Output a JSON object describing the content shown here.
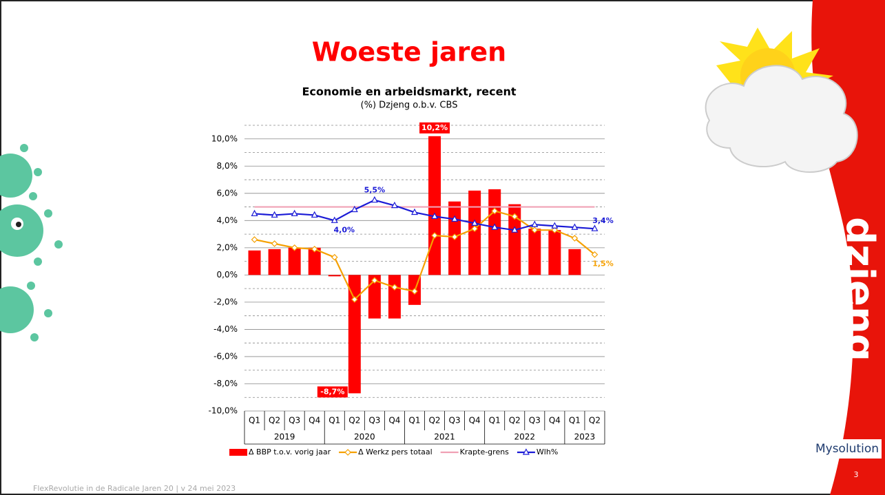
{
  "slide": {
    "title": "Woeste jaren",
    "logo": "dzjeng",
    "brand": "Mysolution",
    "footer": "FlexRevolutie in de Radicale Jaren 20  |  v 24 mei 2023",
    "page_number": "3"
  },
  "chart_data": {
    "type": "combo",
    "title": "Economie en arbeidsmarkt, recent",
    "subtitle": "(%) Dzjeng o.b.v. CBS",
    "categories": [
      "Q1",
      "Q2",
      "Q3",
      "Q4",
      "Q1",
      "Q2",
      "Q3",
      "Q4",
      "Q1",
      "Q2",
      "Q3",
      "Q4",
      "Q1",
      "Q2",
      "Q3",
      "Q4",
      "Q1",
      "Q2"
    ],
    "category_groups": [
      "2019",
      "2019",
      "2019",
      "2019",
      "2020",
      "2020",
      "2020",
      "2020",
      "2021",
      "2021",
      "2021",
      "2021",
      "2022",
      "2022",
      "2022",
      "2022",
      "2023",
      "2023"
    ],
    "ylim": [
      -10,
      11
    ],
    "yticks": [
      {
        "value": -10,
        "label": "-10,0%"
      },
      {
        "value": -8,
        "label": "-8,0%"
      },
      {
        "value": -6,
        "label": "-6,0%"
      },
      {
        "value": -4,
        "label": "-4,0%"
      },
      {
        "value": -2,
        "label": "-2,0%"
      },
      {
        "value": 0,
        "label": "0,0%"
      },
      {
        "value": 2,
        "label": "2,0%"
      },
      {
        "value": 4,
        "label": "4,0%"
      },
      {
        "value": 6,
        "label": "6,0%"
      },
      {
        "value": 8,
        "label": "8,0%"
      },
      {
        "value": 10,
        "label": "10,0%"
      }
    ],
    "yminor": [
      -9,
      -7,
      -5,
      -3,
      -1,
      1,
      3,
      5,
      7,
      9,
      11
    ],
    "grid": true,
    "series": [
      {
        "name": "Δ BBP t.o.v. vorig jaar",
        "kind": "bar",
        "color": "#ff0000",
        "values": [
          1.8,
          1.9,
          2.0,
          2.0,
          -0.1,
          -8.7,
          -3.2,
          -3.2,
          -2.2,
          10.2,
          5.4,
          6.2,
          6.3,
          5.2,
          3.4,
          3.3,
          1.9,
          null
        ],
        "value_labels": [
          null,
          null,
          null,
          null,
          null,
          "-8,7%",
          null,
          null,
          null,
          "10,2%",
          null,
          null,
          null,
          null,
          null,
          null,
          null,
          null
        ]
      },
      {
        "name": "Δ  Werkz pers totaal",
        "kind": "line",
        "marker": "diamond",
        "color": "#f5a000",
        "values": [
          2.6,
          2.3,
          2.0,
          1.9,
          1.3,
          -1.8,
          -0.4,
          -0.9,
          -1.2,
          2.9,
          2.8,
          3.4,
          4.7,
          4.3,
          3.3,
          3.3,
          2.7,
          1.5
        ],
        "value_labels": [
          null,
          null,
          null,
          null,
          null,
          null,
          null,
          null,
          null,
          null,
          null,
          null,
          null,
          null,
          null,
          null,
          null,
          "1,5%"
        ]
      },
      {
        "name": "Krapte-grens",
        "kind": "line",
        "marker": "none",
        "color": "#f0a0b4",
        "values": [
          5,
          5,
          5,
          5,
          5,
          5,
          5,
          5,
          5,
          5,
          5,
          5,
          5,
          5,
          5,
          5,
          5,
          5
        ]
      },
      {
        "name": "Wlh%",
        "kind": "line",
        "marker": "triangle",
        "color": "#1a1ad6",
        "values": [
          4.5,
          4.4,
          4.5,
          4.4,
          4.0,
          4.8,
          5.5,
          5.1,
          4.6,
          4.3,
          4.1,
          3.8,
          3.5,
          3.3,
          3.7,
          3.6,
          3.5,
          3.4
        ],
        "value_labels": [
          null,
          null,
          null,
          null,
          "4,0%",
          null,
          "5,5%",
          null,
          null,
          null,
          null,
          null,
          null,
          null,
          null,
          null,
          null,
          "3,4%"
        ]
      }
    ],
    "legend": "bottom"
  }
}
